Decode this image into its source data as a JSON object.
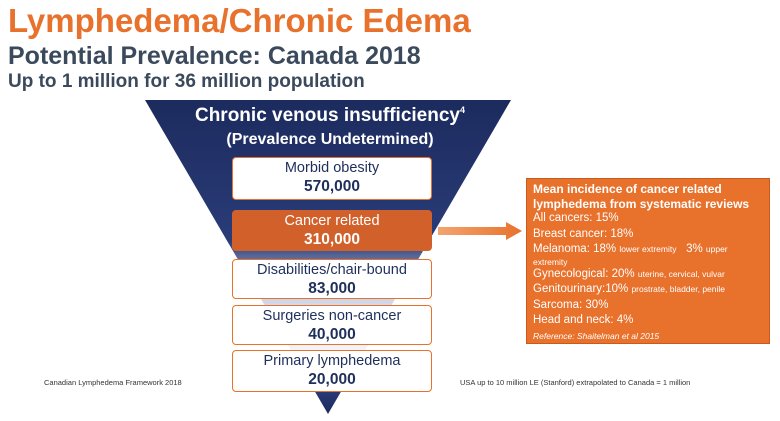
{
  "header": {
    "title": "Lymphedema/Chronic Edema",
    "subtitle": "Potential Prevalence: Canada 2018",
    "tagline": "Up to 1 million for 36 million population"
  },
  "funnel": {
    "apex_title": "Chronic venous insufficiency",
    "apex_superscript": "4",
    "apex_subtitle": "(Prevalence Undetermined)",
    "levels": [
      {
        "label": "Morbid obesity",
        "value": "570,000"
      },
      {
        "label": "Cancer related",
        "value": "310,000",
        "highlighted": true
      },
      {
        "label": "Disabilities/chair-bound",
        "value": "83,000"
      },
      {
        "label": "Surgeries non-cancer",
        "value": "40,000"
      },
      {
        "label": "Primary lymphedema",
        "value": "20,000"
      }
    ]
  },
  "panel": {
    "heading": "Mean incidence of cancer related lymphedema from systematic reviews",
    "all_cancers": "All cancers: 15%",
    "breast": "Breast cancer: 18%",
    "melanoma_main": "Melanoma: 18%",
    "melanoma_lower": "lower extremity",
    "melanoma_upper_pct": "3%",
    "melanoma_upper": "upper",
    "melanoma_wrap": "extremity",
    "gyn_main": "Gynecological: 20%",
    "gyn_detail": "uterine, cervical, vulvar",
    "gu_main": "Genitourinary:10%",
    "gu_detail": "prostrate, bladder, penile",
    "sarcoma": "Sarcoma: 30%",
    "head_neck": "Head and neck: 4%",
    "reference": "Reference: Shaitelman et al  2015"
  },
  "footer": {
    "left": "Canadian Lymphedema Framework 2018",
    "right": "USA up to 10 million LE (Stanford) extrapolated to Canada = 1 million"
  },
  "colors": {
    "accent_orange": "#e8712c",
    "navy": "#1f2f5c",
    "funnel_dark": "#1c2b5e"
  }
}
